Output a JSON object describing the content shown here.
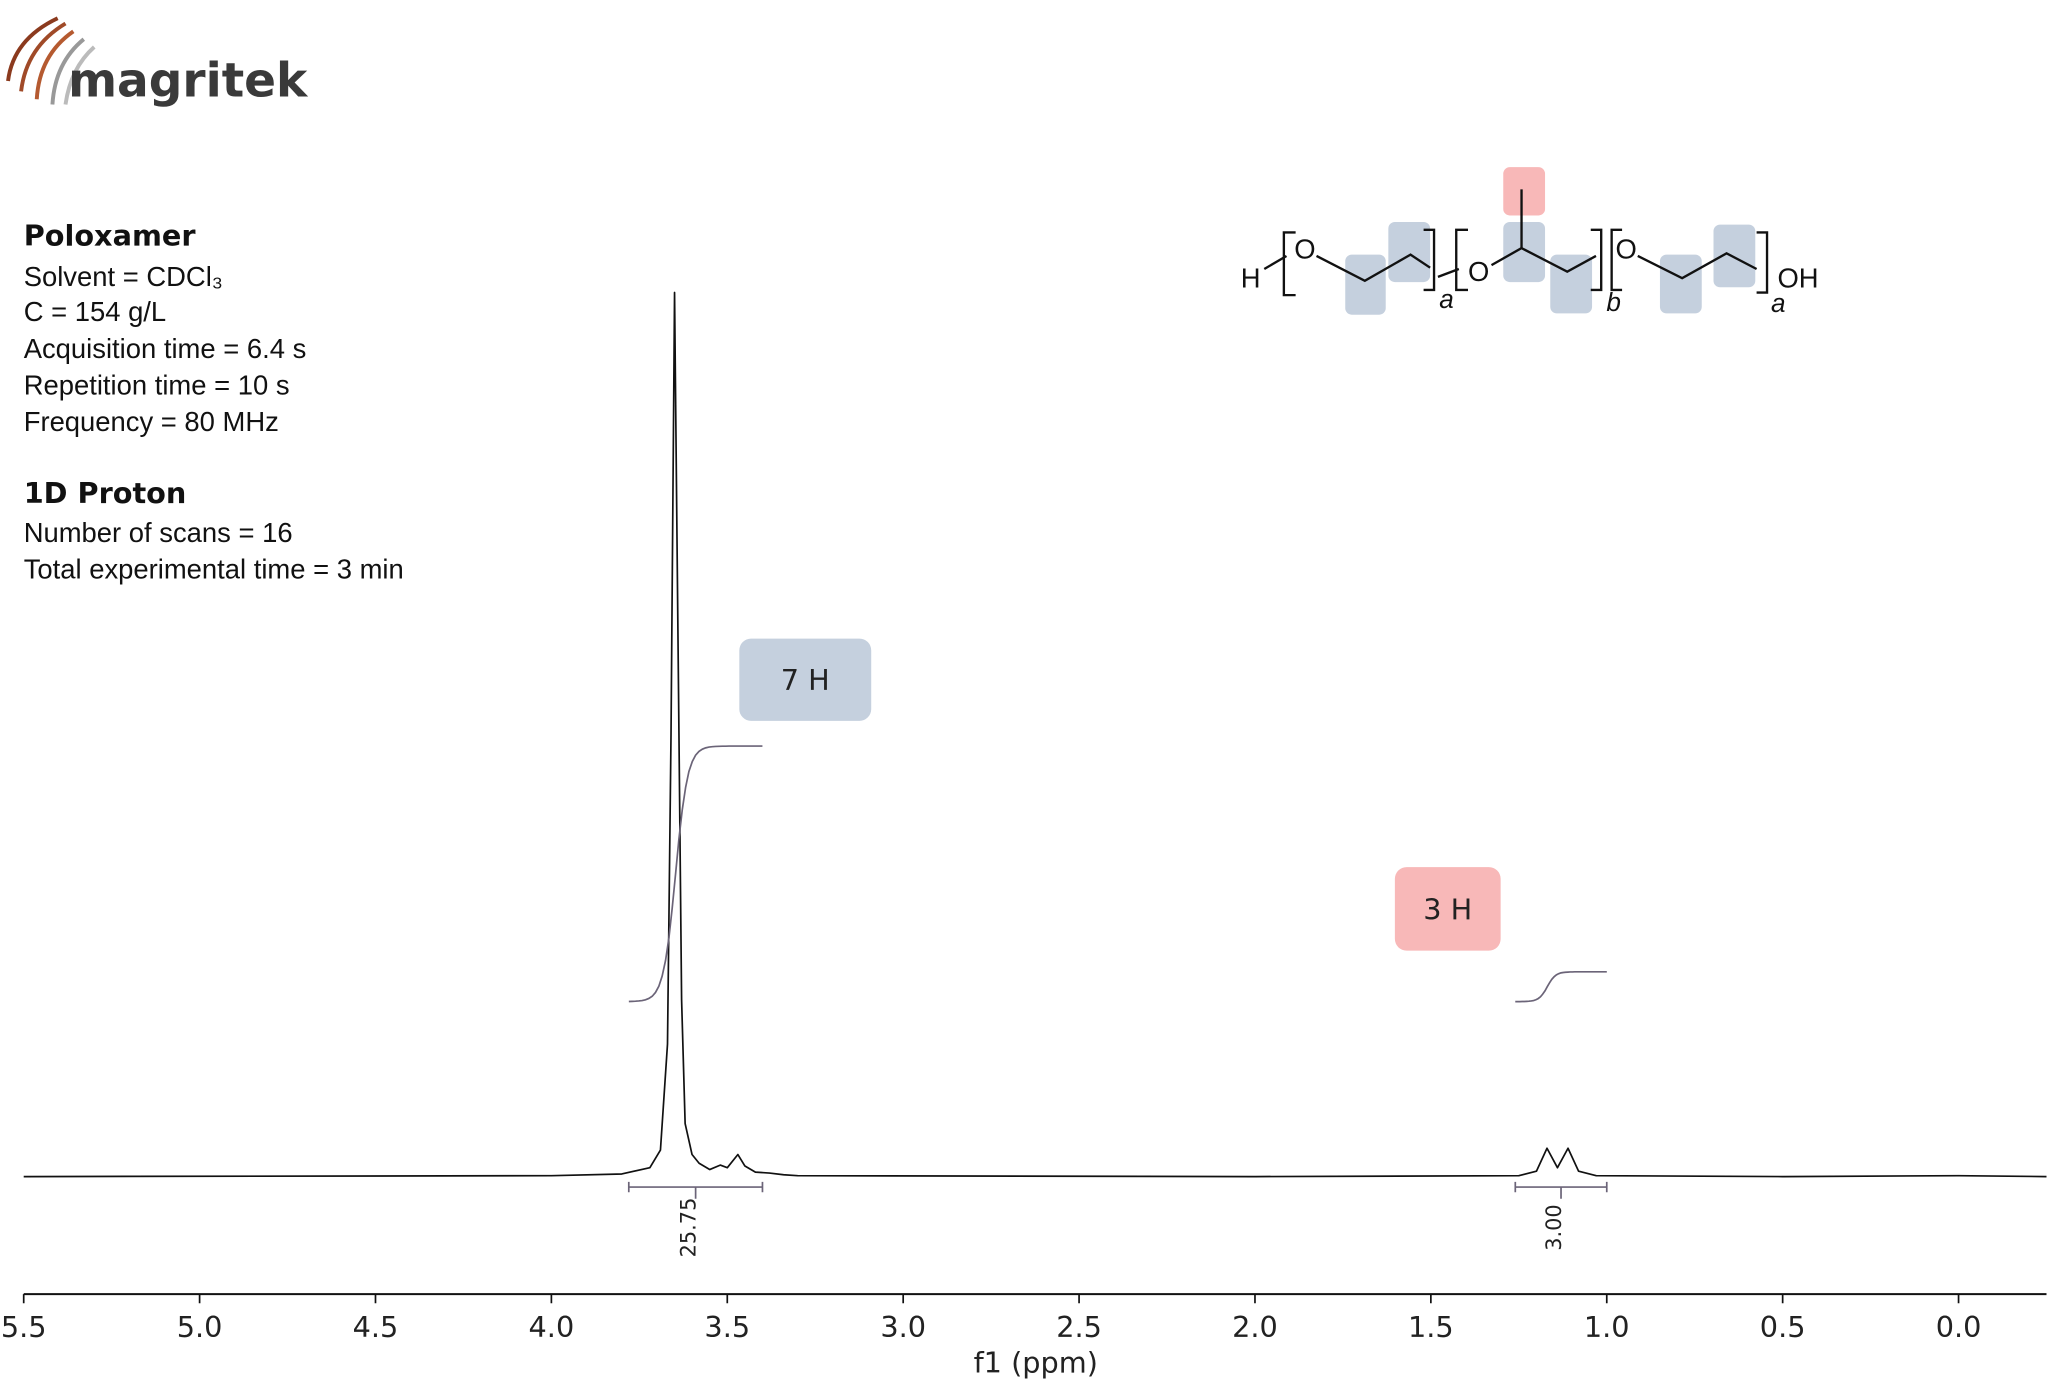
{
  "logo": "magritek",
  "sample": {
    "title": "Poloxamer",
    "lines": [
      "Solvent = CDCl₃",
      "C = 154 g/L",
      "Acquisition time = 6.4 s",
      "Repetition time = 10 s",
      "Frequency = 80 MHz"
    ]
  },
  "experiment": {
    "title": "1D Proton",
    "lines": [
      "Number of scans = 16",
      "Total experimental time = 3 min"
    ]
  },
  "structure": {
    "labels": [
      "H",
      "O",
      "a",
      "O",
      "b",
      "O",
      "OH",
      "a"
    ]
  },
  "chart_data": {
    "type": "line",
    "x_label": "f1 (ppm)",
    "x": [
      5.5,
      4.0,
      3.8,
      3.72,
      3.69,
      3.67,
      3.66,
      3.65,
      3.64,
      3.63,
      3.62,
      3.6,
      3.58,
      3.55,
      3.52,
      3.5,
      3.47,
      3.45,
      3.42,
      3.38,
      3.34,
      3.3,
      2.0,
      1.25,
      1.2,
      1.17,
      1.14,
      1.11,
      1.08,
      1.03,
      0.5,
      0.0,
      -0.25
    ],
    "values": [
      0,
      0.1,
      0.3,
      1,
      3,
      15,
      50,
      100,
      60,
      20,
      6,
      2.5,
      1.5,
      0.8,
      1.3,
      1.0,
      2.5,
      1.2,
      0.5,
      0.4,
      0.2,
      0.1,
      0,
      0.1,
      0.6,
      3.2,
      1.0,
      3.2,
      0.6,
      0.1,
      0,
      0.1,
      0
    ],
    "color": "#111111",
    "xlim": [
      5.5,
      -0.25
    ],
    "xticks": [
      5.5,
      {
        "value": 5,
        "label": "5.0"
      },
      4.5,
      {
        "value": 4,
        "label": "4.0"
      },
      3.5,
      {
        "value": 3,
        "label": "3.0"
      },
      2.5,
      {
        "value": 2,
        "label": "2.0"
      },
      1.5,
      {
        "value": 1,
        "label": "1.0"
      },
      0.5,
      {
        "value": 0,
        "label": "0.0"
      }
    ],
    "integrals": {
      "ranges": [
        [
          3.78,
          3.4
        ],
        [
          1.26,
          1.0
        ]
      ],
      "values": [
        25.75,
        3
      ],
      "value_labels": [
        "25.75",
        "3.00"
      ],
      "color": "#6b6478"
    },
    "annotations": [
      {
        "text": "7 H",
        "color": "#c5d0de"
      },
      {
        "text": "3 H",
        "color": "#f8b8b8"
      }
    ]
  }
}
